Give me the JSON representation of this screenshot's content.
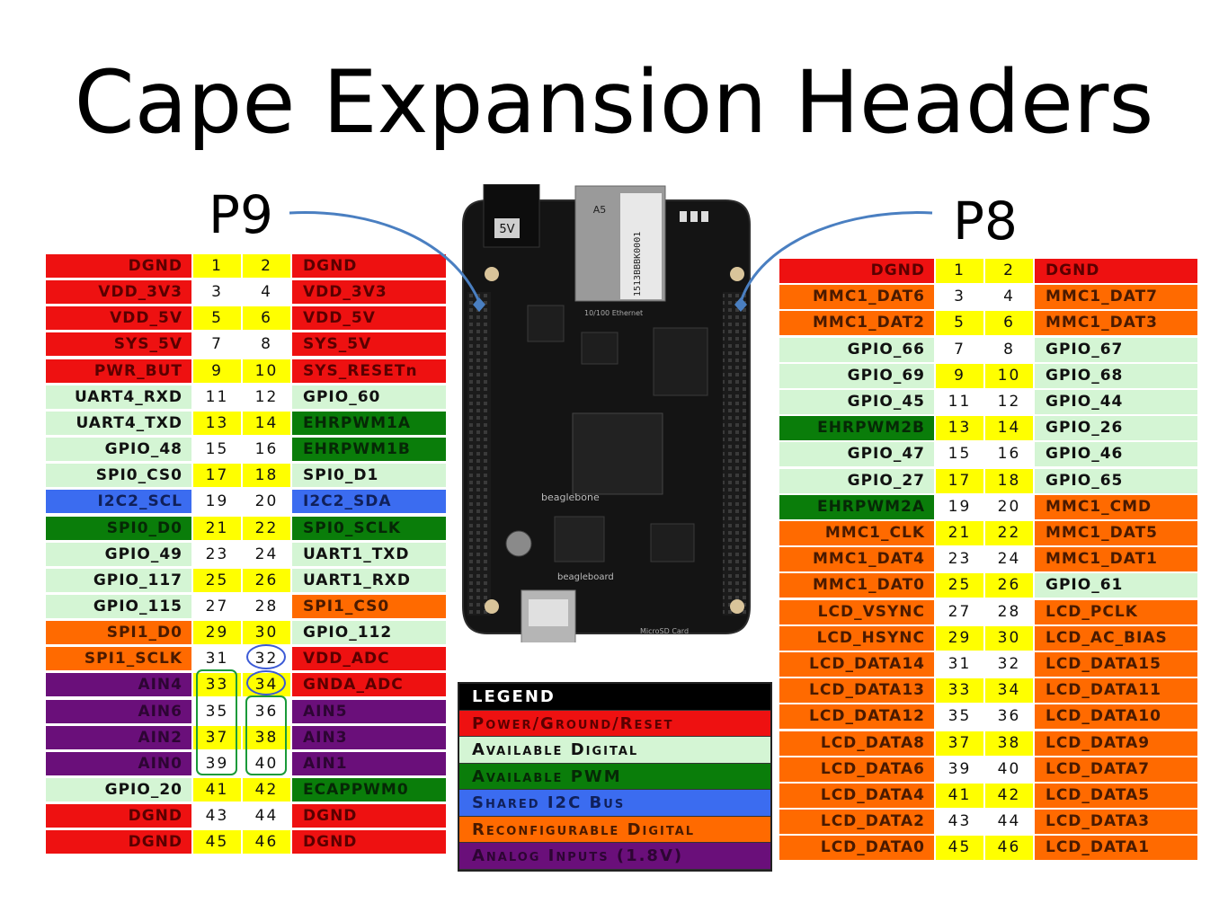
{
  "title": "Cape Expansion Headers",
  "p9": {
    "label": "P9",
    "rows": [
      {
        "left": "DGND",
        "lc": "power",
        "n1": "1",
        "n2": "2",
        "nc": "yellow",
        "right": "DGND",
        "rc": "power"
      },
      {
        "left": "VDD_3V3",
        "lc": "power",
        "n1": "3",
        "n2": "4",
        "nc": "white",
        "right": "VDD_3V3",
        "rc": "power"
      },
      {
        "left": "VDD_5V",
        "lc": "power",
        "n1": "5",
        "n2": "6",
        "nc": "yellow",
        "right": "VDD_5V",
        "rc": "power"
      },
      {
        "left": "SYS_5V",
        "lc": "power",
        "n1": "7",
        "n2": "8",
        "nc": "white",
        "right": "SYS_5V",
        "rc": "power"
      },
      {
        "left": "PWR_BUT",
        "lc": "power",
        "n1": "9",
        "n2": "10",
        "nc": "yellow",
        "right": "SYS_RESETn",
        "rc": "power"
      },
      {
        "left": "UART4_RXD",
        "lc": "digital",
        "n1": "11",
        "n2": "12",
        "nc": "white",
        "right": "GPIO_60",
        "rc": "digital"
      },
      {
        "left": "UART4_TXD",
        "lc": "digital",
        "n1": "13",
        "n2": "14",
        "nc": "yellow",
        "right": "EHRPWM1A",
        "rc": "pwm"
      },
      {
        "left": "GPIO_48",
        "lc": "digital",
        "n1": "15",
        "n2": "16",
        "nc": "white",
        "right": "EHRPWM1B",
        "rc": "pwm"
      },
      {
        "left": "SPI0_CS0",
        "lc": "digital",
        "n1": "17",
        "n2": "18",
        "nc": "yellow",
        "right": "SPI0_D1",
        "rc": "digital"
      },
      {
        "left": "I2C2_SCL",
        "lc": "i2c",
        "n1": "19",
        "n2": "20",
        "nc": "white",
        "right": "I2C2_SDA",
        "rc": "i2c"
      },
      {
        "left": "SPI0_D0",
        "lc": "pwm",
        "n1": "21",
        "n2": "22",
        "nc": "yellow",
        "right": "SPI0_SCLK",
        "rc": "pwm"
      },
      {
        "left": "GPIO_49",
        "lc": "digital",
        "n1": "23",
        "n2": "24",
        "nc": "white",
        "right": "UART1_TXD",
        "rc": "digital"
      },
      {
        "left": "GPIO_117",
        "lc": "digital",
        "n1": "25",
        "n2": "26",
        "nc": "yellow",
        "right": "UART1_RXD",
        "rc": "digital"
      },
      {
        "left": "GPIO_115",
        "lc": "digital",
        "n1": "27",
        "n2": "28",
        "nc": "white",
        "right": "SPI1_CS0",
        "rc": "reconf"
      },
      {
        "left": "SPI1_D0",
        "lc": "reconf",
        "n1": "29",
        "n2": "30",
        "nc": "yellow",
        "right": "GPIO_112",
        "rc": "digital"
      },
      {
        "left": "SPI1_SCLK",
        "lc": "reconf",
        "n1": "31",
        "n2": "32",
        "nc": "white",
        "right": "VDD_ADC",
        "rc": "power"
      },
      {
        "left": "AIN4",
        "lc": "analog",
        "n1": "33",
        "n2": "34",
        "nc": "yellow",
        "right": "GNDA_ADC",
        "rc": "power"
      },
      {
        "left": "AIN6",
        "lc": "analog",
        "n1": "35",
        "n2": "36",
        "nc": "white",
        "right": "AIN5",
        "rc": "analog"
      },
      {
        "left": "AIN2",
        "lc": "analog",
        "n1": "37",
        "n2": "38",
        "nc": "yellow",
        "right": "AIN3",
        "rc": "analog"
      },
      {
        "left": "AIN0",
        "lc": "analog",
        "n1": "39",
        "n2": "40",
        "nc": "white",
        "right": "AIN1",
        "rc": "analog"
      },
      {
        "left": "GPIO_20",
        "lc": "digital",
        "n1": "41",
        "n2": "42",
        "nc": "yellow",
        "right": "ECAPPWM0",
        "rc": "pwm"
      },
      {
        "left": "DGND",
        "lc": "power",
        "n1": "43",
        "n2": "44",
        "nc": "white",
        "right": "DGND",
        "rc": "power"
      },
      {
        "left": "DGND",
        "lc": "power",
        "n1": "45",
        "n2": "46",
        "nc": "yellow",
        "right": "DGND",
        "rc": "power"
      }
    ]
  },
  "p8": {
    "label": "P8",
    "rows": [
      {
        "left": "DGND",
        "lc": "power",
        "n1": "1",
        "n2": "2",
        "nc": "yellow",
        "right": "DGND",
        "rc": "power"
      },
      {
        "left": "MMC1_DAT6",
        "lc": "reconf",
        "n1": "3",
        "n2": "4",
        "nc": "white",
        "right": "MMC1_DAT7",
        "rc": "reconf"
      },
      {
        "left": "MMC1_DAT2",
        "lc": "reconf",
        "n1": "5",
        "n2": "6",
        "nc": "yellow",
        "right": "MMC1_DAT3",
        "rc": "reconf"
      },
      {
        "left": "GPIO_66",
        "lc": "digital",
        "n1": "7",
        "n2": "8",
        "nc": "white",
        "right": "GPIO_67",
        "rc": "digital"
      },
      {
        "left": "GPIO_69",
        "lc": "digital",
        "n1": "9",
        "n2": "10",
        "nc": "yellow",
        "right": "GPIO_68",
        "rc": "digital"
      },
      {
        "left": "GPIO_45",
        "lc": "digital",
        "n1": "11",
        "n2": "12",
        "nc": "white",
        "right": "GPIO_44",
        "rc": "digital"
      },
      {
        "left": "EHRPWM2B",
        "lc": "pwm",
        "n1": "13",
        "n2": "14",
        "nc": "yellow",
        "right": "GPIO_26",
        "rc": "digital"
      },
      {
        "left": "GPIO_47",
        "lc": "digital",
        "n1": "15",
        "n2": "16",
        "nc": "white",
        "right": "GPIO_46",
        "rc": "digital"
      },
      {
        "left": "GPIO_27",
        "lc": "digital",
        "n1": "17",
        "n2": "18",
        "nc": "yellow",
        "right": "GPIO_65",
        "rc": "digital"
      },
      {
        "left": "EHRPWM2A",
        "lc": "pwm",
        "n1": "19",
        "n2": "20",
        "nc": "white",
        "right": "MMC1_CMD",
        "rc": "reconf"
      },
      {
        "left": "MMC1_CLK",
        "lc": "reconf",
        "n1": "21",
        "n2": "22",
        "nc": "yellow",
        "right": "MMC1_DAT5",
        "rc": "reconf"
      },
      {
        "left": "MMC1_DAT4",
        "lc": "reconf",
        "n1": "23",
        "n2": "24",
        "nc": "white",
        "right": "MMC1_DAT1",
        "rc": "reconf"
      },
      {
        "left": "MMC1_DAT0",
        "lc": "reconf",
        "n1": "25",
        "n2": "26",
        "nc": "yellow",
        "right": "GPIO_61",
        "rc": "digital"
      },
      {
        "left": "LCD_VSYNC",
        "lc": "reconf",
        "n1": "27",
        "n2": "28",
        "nc": "white",
        "right": "LCD_PCLK",
        "rc": "reconf"
      },
      {
        "left": "LCD_HSYNC",
        "lc": "reconf",
        "n1": "29",
        "n2": "30",
        "nc": "yellow",
        "right": "LCD_AC_BIAS",
        "rc": "reconf"
      },
      {
        "left": "LCD_DATA14",
        "lc": "reconf",
        "n1": "31",
        "n2": "32",
        "nc": "white",
        "right": "LCD_DATA15",
        "rc": "reconf"
      },
      {
        "left": "LCD_DATA13",
        "lc": "reconf",
        "n1": "33",
        "n2": "34",
        "nc": "yellow",
        "right": "LCD_DATA11",
        "rc": "reconf"
      },
      {
        "left": "LCD_DATA12",
        "lc": "reconf",
        "n1": "35",
        "n2": "36",
        "nc": "white",
        "right": "LCD_DATA10",
        "rc": "reconf"
      },
      {
        "left": "LCD_DATA8",
        "lc": "reconf",
        "n1": "37",
        "n2": "38",
        "nc": "yellow",
        "right": "LCD_DATA9",
        "rc": "reconf"
      },
      {
        "left": "LCD_DATA6",
        "lc": "reconf",
        "n1": "39",
        "n2": "40",
        "nc": "white",
        "right": "LCD_DATA7",
        "rc": "reconf"
      },
      {
        "left": "LCD_DATA4",
        "lc": "reconf",
        "n1": "41",
        "n2": "42",
        "nc": "yellow",
        "right": "LCD_DATA5",
        "rc": "reconf"
      },
      {
        "left": "LCD_DATA2",
        "lc": "reconf",
        "n1": "43",
        "n2": "44",
        "nc": "white",
        "right": "LCD_DATA3",
        "rc": "reconf"
      },
      {
        "left": "LCD_DATA0",
        "lc": "reconf",
        "n1": "45",
        "n2": "46",
        "nc": "yellow",
        "right": "LCD_DATA1",
        "rc": "reconf"
      }
    ]
  },
  "legend": {
    "title": "LEGEND",
    "items": [
      {
        "label": "Power/Ground/Reset",
        "cls": "power"
      },
      {
        "label": "Available Digital",
        "cls": "digital"
      },
      {
        "label": "Available PWM",
        "cls": "pwm"
      },
      {
        "label": "Shared I2C Bus",
        "cls": "i2c"
      },
      {
        "label": "Reconfigurable Digital",
        "cls": "reconf"
      },
      {
        "label": "Analog Inputs (1.8V)",
        "cls": "analog"
      }
    ]
  },
  "board": {
    "power_jack_label": "5V",
    "ethernet_label": "A5",
    "serial_label": "1513BBBK0001",
    "ethernet_caption": "10/100 Ethernet",
    "microsd_caption": "MicroSD Card",
    "brand_text": "beagleboard",
    "brand_text2": "beaglebone"
  },
  "colors": {
    "power": "#ee1111",
    "digital": "#d4f5d4",
    "pwm": "#0a7d0a",
    "i2c": "#3b6cf0",
    "reconf": "#ff6a00",
    "analog": "#6a0f7a",
    "yellow": "#ffff00",
    "pointer": "#4a7fc1"
  }
}
